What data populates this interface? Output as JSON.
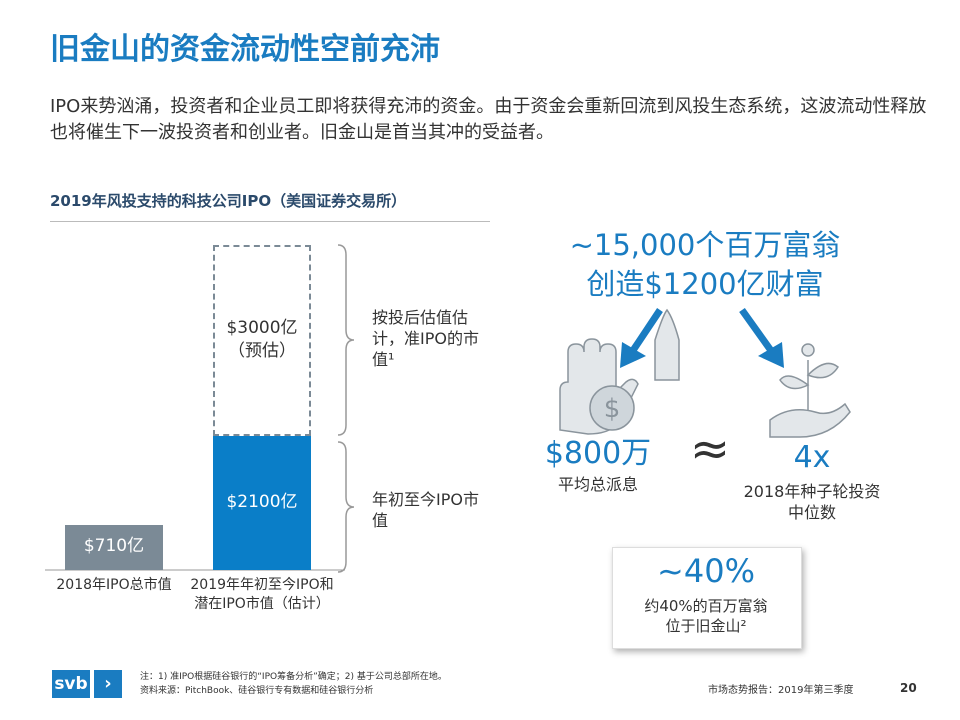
{
  "title": "旧金山的资金流动性空前充沛",
  "intro": "IPO来势汹涌，投资者和企业员工即将获得充沛的资金。由于资金会重新回流到风投生态系统，这波流动性释放也将催生下一波投资者和创业者。旧金山是首当其冲的受益者。",
  "chart_data": {
    "type": "stacked-bar",
    "title": "2019年风投支持的科技公司IPO（美国证券交易所）",
    "categories": [
      "2018年IPO总市值",
      "2019年年初至今IPO和\n潜在IPO市值（估计）"
    ],
    "series": [
      {
        "name": "年初至今IPO市值",
        "colors": [
          "#7b8a96",
          "#0a7ec8"
        ],
        "values": [
          710,
          2100
        ],
        "value_labels": [
          "$710亿",
          "$2100亿"
        ]
      },
      {
        "name": "按投后估值估计，准IPO的市值¹",
        "color": "#ffffff",
        "dashed": true,
        "values": [
          null,
          3000
        ],
        "value_labels": [
          null,
          "$3000亿\n（预估）"
        ]
      }
    ]
  },
  "infographic": {
    "headline": "~15,000个百万富翁\n创造$1200亿财富",
    "left_value": "$800万",
    "left_label": "平均总派息",
    "approx": "≈",
    "right_value": "4x",
    "right_label": "2018年种子轮投资\n中位数",
    "box_value": "~40%",
    "box_label": "约40%的百万富翁\n位于旧金山²"
  },
  "footer": {
    "logo": "svb",
    "notes": "注：1) 准IPO根据硅谷银行的“IPO筹备分析”确定；2) 基于公司总部所在地。\n资料来源：PitchBook、硅谷银行专有数据和硅谷银行分析",
    "report": "市场态势报告：2019年第三季度",
    "page": "20"
  }
}
